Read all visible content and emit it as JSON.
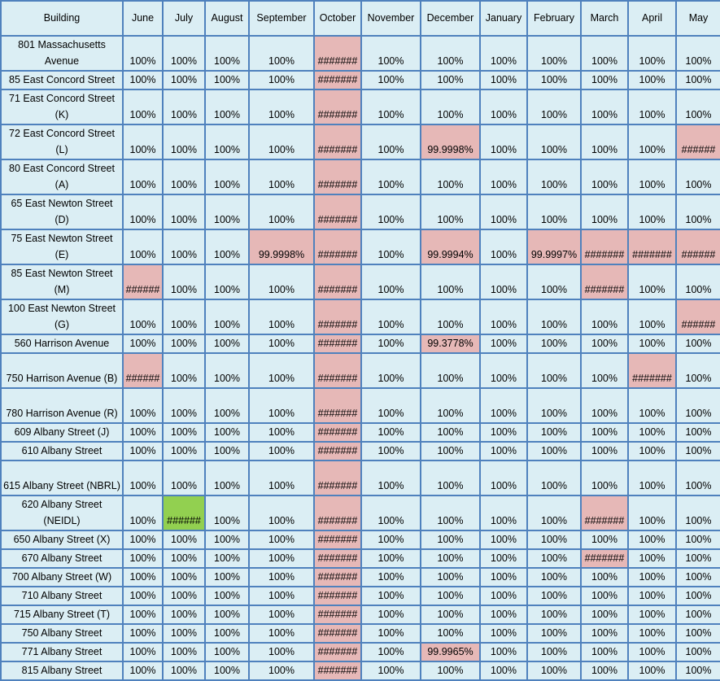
{
  "months": [
    "June",
    "July",
    "August",
    "September",
    "October",
    "November",
    "December",
    "January",
    "February",
    "March",
    "April",
    "May"
  ],
  "building_header": "Building",
  "colors": {
    "grid": "#4f81bd",
    "cell": "#dbeef4",
    "flag": "#e6b8b7",
    "ok": "#92d050"
  },
  "rows": [
    {
      "building": "801 Massachusetts Avenue",
      "lines": 2,
      "values": [
        "100%",
        "100%",
        "100%",
        "100%",
        "#######",
        "100%",
        "100%",
        "100%",
        "100%",
        "100%",
        "100%",
        "100%"
      ],
      "hl": {
        "4": "pink"
      }
    },
    {
      "building": "85 East Concord Street",
      "lines": 1,
      "values": [
        "100%",
        "100%",
        "100%",
        "100%",
        "#######",
        "100%",
        "100%",
        "100%",
        "100%",
        "100%",
        "100%",
        "100%"
      ],
      "hl": {
        "4": "pink"
      }
    },
    {
      "building": "71 East Concord Street (K)",
      "lines": 2,
      "values": [
        "100%",
        "100%",
        "100%",
        "100%",
        "#######",
        "100%",
        "100%",
        "100%",
        "100%",
        "100%",
        "100%",
        "100%"
      ],
      "hl": {
        "4": "pink"
      }
    },
    {
      "building": "72 East Concord Street (L)",
      "lines": 2,
      "values": [
        "100%",
        "100%",
        "100%",
        "100%",
        "#######",
        "100%",
        "99.9998%",
        "100%",
        "100%",
        "100%",
        "100%",
        "######"
      ],
      "hl": {
        "4": "pink",
        "6": "pink",
        "11": "pink"
      }
    },
    {
      "building": "80 East Concord Street (A)",
      "lines": 2,
      "values": [
        "100%",
        "100%",
        "100%",
        "100%",
        "#######",
        "100%",
        "100%",
        "100%",
        "100%",
        "100%",
        "100%",
        "100%"
      ],
      "hl": {
        "4": "pink"
      }
    },
    {
      "building": "65 East Newton Street (D)",
      "lines": 2,
      "values": [
        "100%",
        "100%",
        "100%",
        "100%",
        "#######",
        "100%",
        "100%",
        "100%",
        "100%",
        "100%",
        "100%",
        "100%"
      ],
      "hl": {
        "4": "pink"
      }
    },
    {
      "building": "75 East Newton Street (E)",
      "lines": 2,
      "values": [
        "100%",
        "100%",
        "100%",
        "99.9998%",
        "#######",
        "100%",
        "99.9994%",
        "100%",
        "99.9997%",
        "#######",
        "#######",
        "######"
      ],
      "hl": {
        "3": "pink",
        "4": "pink",
        "6": "pink",
        "8": "pink",
        "9": "pink",
        "10": "pink",
        "11": "pink"
      }
    },
    {
      "building": "85 East Newton Street (M)",
      "lines": 2,
      "values": [
        "######",
        "100%",
        "100%",
        "100%",
        "#######",
        "100%",
        "100%",
        "100%",
        "100%",
        "#######",
        "100%",
        "100%"
      ],
      "hl": {
        "0": "pink",
        "4": "pink",
        "9": "pink"
      }
    },
    {
      "building": "100 East Newton Street (G)",
      "lines": 2,
      "values": [
        "100%",
        "100%",
        "100%",
        "100%",
        "#######",
        "100%",
        "100%",
        "100%",
        "100%",
        "100%",
        "100%",
        "######"
      ],
      "hl": {
        "4": "pink",
        "11": "pink"
      }
    },
    {
      "building": "560 Harrison Avenue",
      "lines": 1,
      "values": [
        "100%",
        "100%",
        "100%",
        "100%",
        "#######",
        "100%",
        "99.3778%",
        "100%",
        "100%",
        "100%",
        "100%",
        "100%"
      ],
      "hl": {
        "4": "pink",
        "6": "pink"
      }
    },
    {
      "building": "750 Harrison Avenue (B)",
      "lines": 2,
      "values": [
        "######",
        "100%",
        "100%",
        "100%",
        "#######",
        "100%",
        "100%",
        "100%",
        "100%",
        "100%",
        "#######",
        "100%"
      ],
      "hl": {
        "0": "pink",
        "4": "pink",
        "10": "pink"
      }
    },
    {
      "building": "780 Harrison Avenue (R)",
      "lines": 2,
      "values": [
        "100%",
        "100%",
        "100%",
        "100%",
        "#######",
        "100%",
        "100%",
        "100%",
        "100%",
        "100%",
        "100%",
        "100%"
      ],
      "hl": {
        "4": "pink"
      }
    },
    {
      "building": "609 Albany Street (J)",
      "lines": 1,
      "values": [
        "100%",
        "100%",
        "100%",
        "100%",
        "#######",
        "100%",
        "100%",
        "100%",
        "100%",
        "100%",
        "100%",
        "100%"
      ],
      "hl": {
        "4": "pink"
      }
    },
    {
      "building": "610 Albany Street",
      "lines": 1,
      "values": [
        "100%",
        "100%",
        "100%",
        "100%",
        "#######",
        "100%",
        "100%",
        "100%",
        "100%",
        "100%",
        "100%",
        "100%"
      ],
      "hl": {
        "4": "pink"
      }
    },
    {
      "building": "615 Albany Street (NBRL)",
      "lines": 2,
      "values": [
        "100%",
        "100%",
        "100%",
        "100%",
        "#######",
        "100%",
        "100%",
        "100%",
        "100%",
        "100%",
        "100%",
        "100%"
      ],
      "hl": {
        "4": "pink"
      }
    },
    {
      "building": "620 Albany Street (NEIDL)",
      "lines": 2,
      "values": [
        "100%",
        "######",
        "100%",
        "100%",
        "#######",
        "100%",
        "100%",
        "100%",
        "100%",
        "#######",
        "100%",
        "100%"
      ],
      "hl": {
        "1": "green",
        "4": "pink",
        "9": "pink"
      }
    },
    {
      "building": "650 Albany Street (X)",
      "lines": 1,
      "values": [
        "100%",
        "100%",
        "100%",
        "100%",
        "#######",
        "100%",
        "100%",
        "100%",
        "100%",
        "100%",
        "100%",
        "100%"
      ],
      "hl": {
        "4": "pink"
      }
    },
    {
      "building": "670 Albany Street",
      "lines": 1,
      "values": [
        "100%",
        "100%",
        "100%",
        "100%",
        "#######",
        "100%",
        "100%",
        "100%",
        "100%",
        "#######",
        "100%",
        "100%"
      ],
      "hl": {
        "4": "pink",
        "9": "pink"
      }
    },
    {
      "building": "700 Albany Street (W)",
      "lines": 1,
      "values": [
        "100%",
        "100%",
        "100%",
        "100%",
        "#######",
        "100%",
        "100%",
        "100%",
        "100%",
        "100%",
        "100%",
        "100%"
      ],
      "hl": {
        "4": "pink"
      }
    },
    {
      "building": "710 Albany Street",
      "lines": 1,
      "values": [
        "100%",
        "100%",
        "100%",
        "100%",
        "#######",
        "100%",
        "100%",
        "100%",
        "100%",
        "100%",
        "100%",
        "100%"
      ],
      "hl": {
        "4": "pink"
      }
    },
    {
      "building": "715 Albany Street (T)",
      "lines": 1,
      "values": [
        "100%",
        "100%",
        "100%",
        "100%",
        "#######",
        "100%",
        "100%",
        "100%",
        "100%",
        "100%",
        "100%",
        "100%"
      ],
      "hl": {
        "4": "pink"
      }
    },
    {
      "building": "750 Albany Street",
      "lines": 1,
      "values": [
        "100%",
        "100%",
        "100%",
        "100%",
        "#######",
        "100%",
        "100%",
        "100%",
        "100%",
        "100%",
        "100%",
        "100%"
      ],
      "hl": {
        "4": "pink"
      }
    },
    {
      "building": "771 Albany Street",
      "lines": 1,
      "values": [
        "100%",
        "100%",
        "100%",
        "100%",
        "#######",
        "100%",
        "99.9965%",
        "100%",
        "100%",
        "100%",
        "100%",
        "100%"
      ],
      "hl": {
        "4": "pink",
        "6": "pink"
      }
    },
    {
      "building": "815 Albany Street",
      "lines": 1,
      "values": [
        "100%",
        "100%",
        "100%",
        "100%",
        "#######",
        "100%",
        "100%",
        "100%",
        "100%",
        "100%",
        "100%",
        "100%"
      ],
      "hl": {
        "4": "pink"
      }
    }
  ]
}
